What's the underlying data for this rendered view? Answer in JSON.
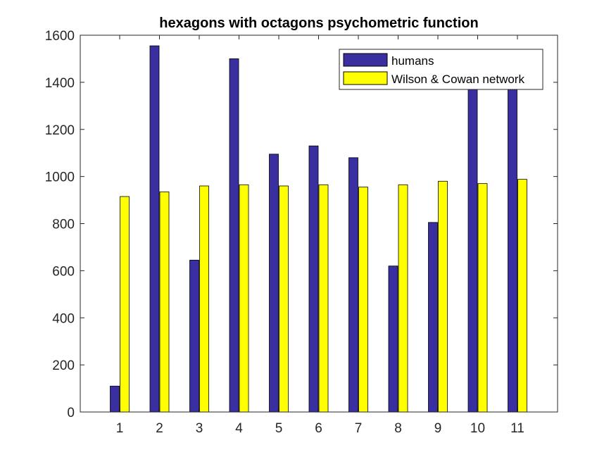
{
  "chart_data": {
    "type": "bar",
    "title": "hexagons with octagons psychometric function",
    "xlabel": "",
    "ylabel": "",
    "categories": [
      "1",
      "2",
      "3",
      "4",
      "5",
      "6",
      "7",
      "8",
      "9",
      "10",
      "11"
    ],
    "series": [
      {
        "name": "humans",
        "color": "#3a2fa0",
        "values": [
          110,
          1555,
          645,
          1500,
          1095,
          1130,
          1080,
          620,
          805,
          1380,
          1380
        ]
      },
      {
        "name": "Wilson & Cowan network",
        "color": "#ffff00",
        "values": [
          915,
          935,
          960,
          965,
          960,
          965,
          955,
          965,
          980,
          970,
          988
        ]
      }
    ],
    "ylim": [
      0,
      1600
    ],
    "yticks": [
      0,
      200,
      400,
      600,
      800,
      1000,
      1200,
      1400,
      1600
    ],
    "grid": false,
    "legend_position": "top-right"
  }
}
